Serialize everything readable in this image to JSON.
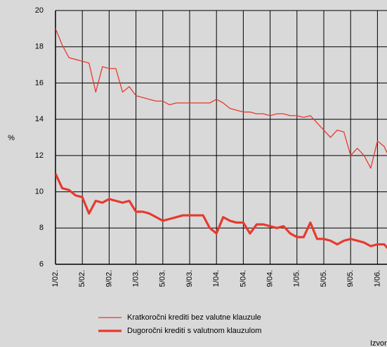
{
  "chart_data": {
    "type": "line",
    "ylabel": "%",
    "categories": [
      "1/02.",
      null,
      null,
      null,
      "5/02.",
      null,
      null,
      null,
      "9/02.",
      null,
      null,
      null,
      "1/03.",
      null,
      null,
      null,
      "5/03.",
      null,
      null,
      null,
      "9/03.",
      null,
      null,
      null,
      "1/04.",
      null,
      null,
      null,
      "5/04.",
      null,
      null,
      null,
      "9/04.",
      null,
      null,
      null,
      "1/05.",
      null,
      null,
      null,
      "5/05.",
      null,
      null,
      null,
      "9/05.",
      null,
      null,
      null,
      "1/06.",
      null,
      null
    ],
    "series": [
      {
        "name": "Kratkoročni krediti bez valutne klauzule",
        "color": "#e8392e",
        "width": 1.3,
        "values": [
          19.0,
          18.1,
          17.4,
          17.3,
          17.2,
          17.1,
          15.5,
          16.9,
          16.8,
          16.8,
          15.5,
          15.8,
          15.3,
          15.2,
          15.1,
          15.0,
          15.0,
          14.8,
          14.9,
          14.9,
          14.9,
          14.9,
          14.9,
          14.9,
          15.1,
          14.9,
          14.6,
          14.5,
          14.4,
          14.4,
          14.3,
          14.3,
          14.2,
          14.3,
          14.3,
          14.2,
          14.2,
          14.1,
          14.2,
          13.8,
          13.4,
          13.0,
          13.4,
          13.3,
          12.0,
          12.4,
          12.0,
          11.3,
          12.8,
          12.5,
          11.7
        ]
      },
      {
        "name": "Dugoročni krediti s valutnom klauzulom",
        "color": "#e8392e",
        "width": 3.2,
        "values": [
          11.0,
          10.2,
          10.1,
          9.8,
          9.7,
          8.8,
          9.5,
          9.4,
          9.6,
          9.5,
          9.4,
          9.5,
          8.9,
          8.9,
          8.8,
          8.6,
          8.4,
          8.5,
          8.6,
          8.7,
          8.7,
          8.7,
          8.7,
          8.0,
          7.7,
          8.6,
          8.4,
          8.3,
          8.3,
          7.7,
          8.2,
          8.2,
          8.1,
          8.0,
          8.1,
          7.7,
          7.5,
          7.5,
          8.3,
          7.4,
          7.4,
          7.3,
          7.1,
          7.3,
          7.4,
          7.3,
          7.2,
          7.0,
          7.1,
          7.1,
          6.7
        ]
      }
    ],
    "ylim": [
      6,
      20
    ],
    "yticks": [
      6,
      8,
      10,
      12,
      14,
      16,
      18,
      20
    ],
    "grid": true,
    "source": "Izvor"
  }
}
